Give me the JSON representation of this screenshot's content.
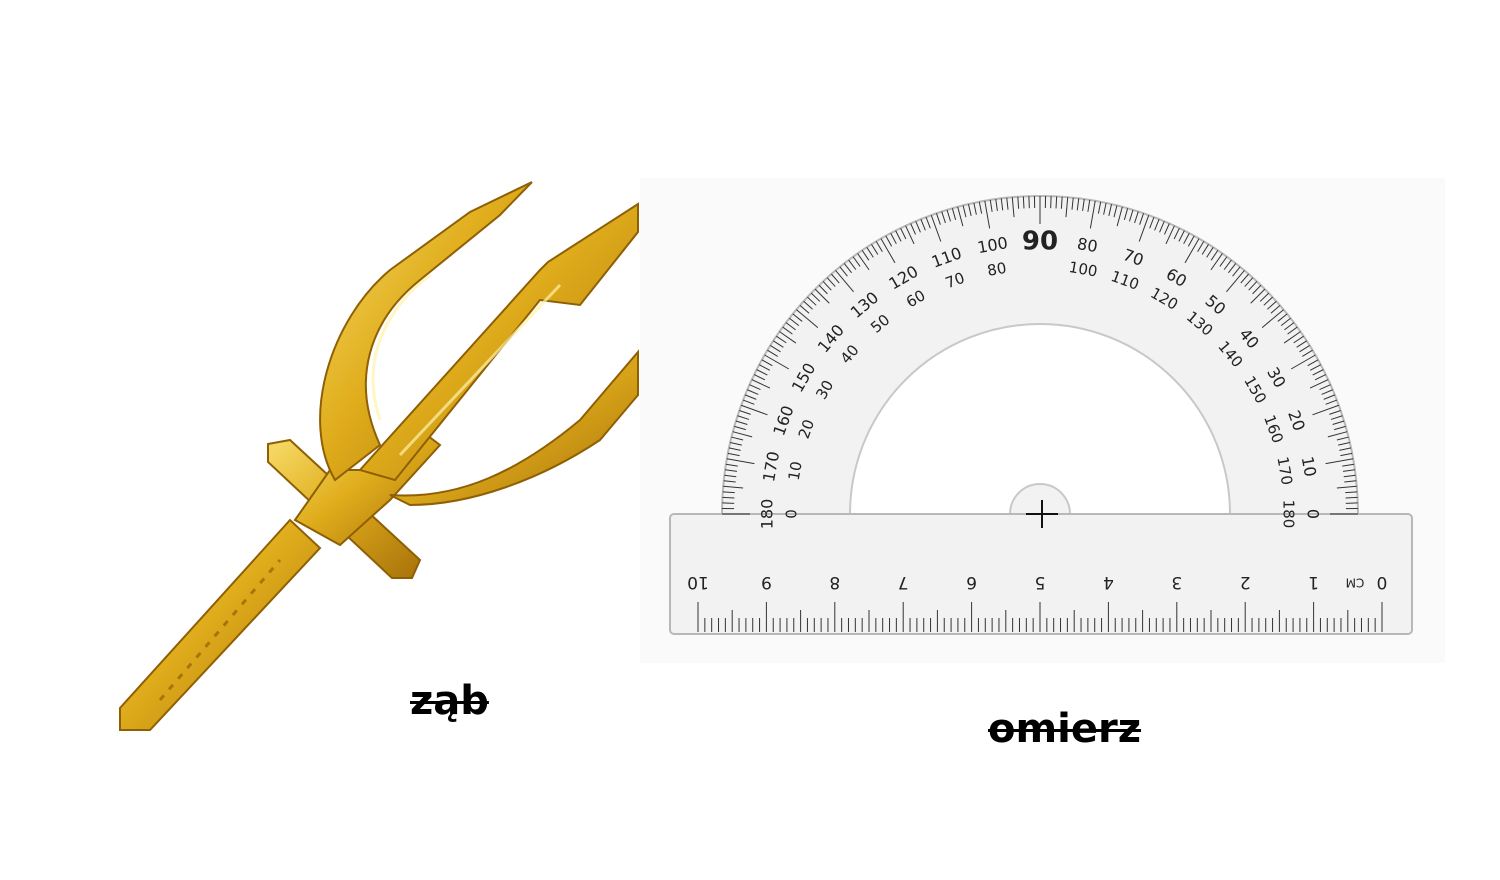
{
  "items": [
    {
      "name": "trident",
      "caption": "ząb"
    },
    {
      "name": "protractor",
      "caption": "omierz"
    }
  ],
  "protractor": {
    "outer_labels": [
      "180",
      "170",
      "160",
      "150",
      "140",
      "130",
      "120",
      "110",
      "100",
      "90",
      "80",
      "70",
      "60",
      "50",
      "40",
      "30",
      "20",
      "10",
      "0"
    ],
    "inner_labels": [
      "0",
      "10",
      "20",
      "30",
      "40",
      "50",
      "60",
      "70",
      "80",
      "100",
      "110",
      "120",
      "130",
      "140",
      "150",
      "160",
      "170",
      "180"
    ],
    "ruler_labels": [
      "10",
      "9",
      "8",
      "7",
      "6",
      "5",
      "4",
      "3",
      "2",
      "1",
      "0"
    ],
    "ruler_unit": "CM"
  },
  "colors": {
    "gold_light": "#f5d35a",
    "gold_mid": "#d9a514",
    "gold_dark": "#9a6a06",
    "plastic": "#f4f4f4",
    "tick": "#333333"
  }
}
